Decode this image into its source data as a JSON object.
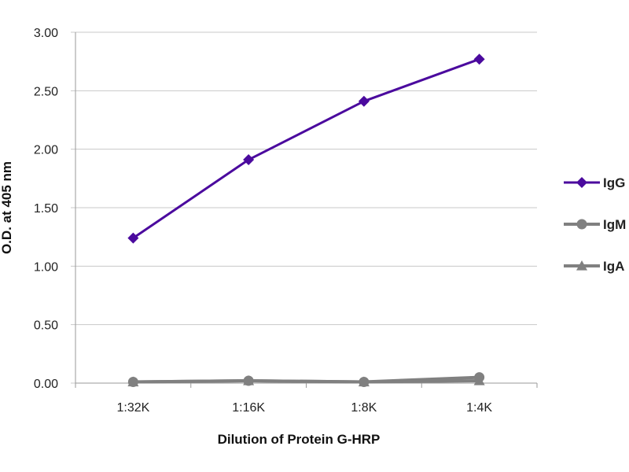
{
  "chart_data": {
    "type": "line",
    "title": "",
    "xlabel": "Dilution of Protein G-HRP",
    "ylabel": "O.D. at 405 nm",
    "categories": [
      "1:32K",
      "1:16K",
      "1:8K",
      "1:4K"
    ],
    "ylim": [
      0,
      3
    ],
    "yticks": [
      "0.00",
      "0.50",
      "1.00",
      "1.50",
      "2.00",
      "2.50",
      "3.00"
    ],
    "grid": true,
    "legend_position": "right",
    "series": [
      {
        "name": "IgG",
        "values": [
          1.24,
          1.91,
          2.41,
          2.77
        ],
        "color": "#4B0A9E",
        "marker": "diamond"
      },
      {
        "name": "IgM",
        "values": [
          0.01,
          0.02,
          0.01,
          0.05
        ],
        "color": "#808080",
        "marker": "circle"
      },
      {
        "name": "IgA",
        "values": [
          0.01,
          0.02,
          0.01,
          0.02
        ],
        "color": "#808080",
        "marker": "triangle"
      }
    ]
  }
}
